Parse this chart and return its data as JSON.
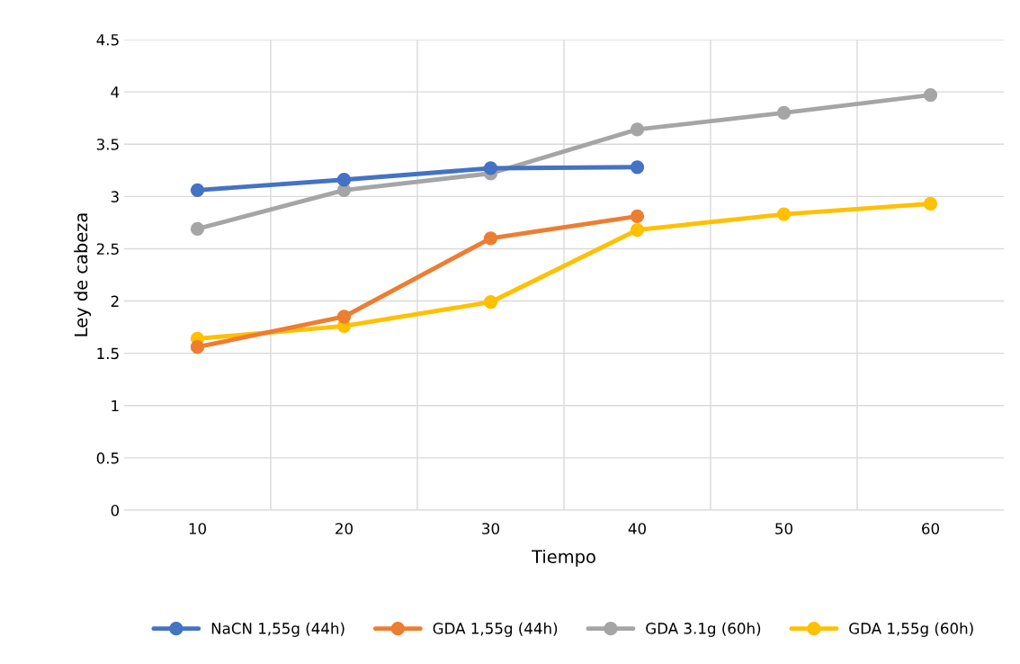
{
  "chart_data": {
    "type": "line",
    "xlabel": "Tiempo",
    "ylabel": "Ley de cabeza",
    "categories": [
      "10",
      "20",
      "30",
      "40",
      "50",
      "60"
    ],
    "series": [
      {
        "name": "NaCN 1,55g (44h)",
        "color": "#4472c4",
        "values": [
          3.06,
          3.16,
          3.27,
          3.28,
          null,
          null
        ]
      },
      {
        "name": "GDA 1,55g (44h)",
        "color": "#ed7d31",
        "values": [
          1.56,
          1.85,
          2.6,
          2.81,
          null,
          null
        ]
      },
      {
        "name": "GDA 3.1g (60h)",
        "color": "#a5a5a5",
        "values": [
          2.69,
          3.06,
          3.22,
          3.64,
          3.8,
          3.97
        ]
      },
      {
        "name": "GDA 1,55g (60h)",
        "color": "#ffc000",
        "values": [
          1.64,
          1.76,
          1.99,
          2.68,
          2.83,
          2.93
        ]
      }
    ],
    "ylim": [
      0,
      4.5
    ],
    "yticks": [
      0,
      0.5,
      1,
      1.5,
      2,
      2.5,
      3,
      3.5,
      4,
      4.5
    ],
    "grid": true,
    "legend": "bottom",
    "marker": "circle",
    "line_style": "solid"
  }
}
